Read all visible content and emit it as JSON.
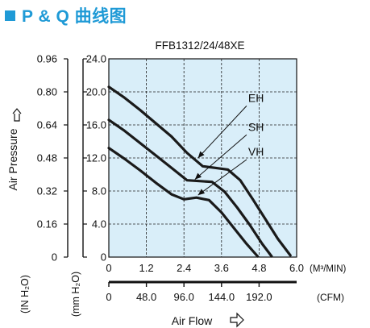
{
  "header": {
    "title": "P & Q 曲线图",
    "accent_color": "#1f9ad6"
  },
  "chart_data": {
    "type": "line",
    "title": "FFB1312/24/48XE",
    "xlabel": "Air Flow",
    "ylabel": "Air Pressure",
    "x_unit_primary": "(M³/MIN)",
    "x_unit_secondary": "(CFM)",
    "y_unit_in": "(IN H₂O)",
    "y_unit_mm": "(mm H₂O)",
    "xlim": [
      0,
      6
    ],
    "ylim": [
      0,
      24
    ],
    "x_ticks": [
      "0",
      "1.2",
      "2.4",
      "3.6",
      "4.8",
      "6.0"
    ],
    "x_ticks_cfm": [
      "0",
      "48.0",
      "96.0",
      "144.0",
      "192.0"
    ],
    "y_ticks_mm": [
      "0",
      "4.0",
      "8.0",
      "12.0",
      "16.0",
      "20.0",
      "24.0"
    ],
    "y_ticks_in": [
      "0",
      "0.16",
      "0.32",
      "0.48",
      "0.64",
      "0.80",
      "0.96"
    ],
    "plot_background": "#d9eef9",
    "grid": "dashed",
    "series": [
      {
        "name": "EH",
        "x": [
          0,
          0.5,
          1.0,
          1.5,
          2.0,
          2.5,
          3.0,
          3.4,
          3.8,
          4.2,
          4.6,
          5.0,
          5.4,
          5.8
        ],
        "y": [
          20.6,
          19.3,
          17.8,
          16.2,
          14.6,
          12.6,
          11.0,
          10.8,
          10.6,
          9.3,
          7.0,
          4.6,
          2.2,
          0.2
        ]
      },
      {
        "name": "SH",
        "x": [
          0,
          0.5,
          1.0,
          1.5,
          2.0,
          2.5,
          2.9,
          3.3,
          3.7,
          4.1,
          4.5,
          4.9,
          5.2
        ],
        "y": [
          16.6,
          15.3,
          13.8,
          12.3,
          10.8,
          9.3,
          9.2,
          9.1,
          7.9,
          6.0,
          3.9,
          1.6,
          0.1
        ]
      },
      {
        "name": "VH",
        "x": [
          0,
          0.5,
          1.0,
          1.5,
          2.0,
          2.4,
          2.8,
          3.2,
          3.6,
          4.0,
          4.4,
          4.75
        ],
        "y": [
          13.2,
          11.9,
          10.5,
          9.0,
          7.6,
          7.0,
          7.2,
          6.9,
          5.4,
          3.5,
          1.6,
          0.1
        ]
      }
    ],
    "annotations": [
      {
        "label": "EH",
        "x": 4.35,
        "y": 18.5,
        "target_x": 2.85,
        "target_y": 12.0
      },
      {
        "label": "SH",
        "x": 4.35,
        "y": 15.0,
        "target_x": 2.75,
        "target_y": 9.4
      },
      {
        "label": "VH",
        "x": 4.35,
        "y": 12.0,
        "target_x": 2.85,
        "target_y": 7.5
      }
    ]
  }
}
